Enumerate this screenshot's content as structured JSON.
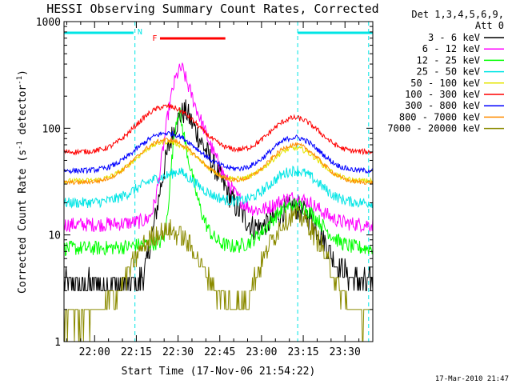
{
  "chart_data": {
    "type": "line",
    "title": "HESSI Observing Summary Count Rates, Corrected",
    "xlabel": "Start Time (17-Nov-06 21:54:22)",
    "ylabel_main": "Corrected Count Rate (s",
    "ylabel_sup1": "-1",
    "ylabel_mid": " detector",
    "ylabel_sup2": "-1",
    "ylabel_end": ")",
    "yscale": "log",
    "ylim": [
      1,
      1000
    ],
    "xlim_minutes": [
      -11,
      100
    ],
    "x_ticks": [
      {
        "t": 0,
        "label": "22:00"
      },
      {
        "t": 15,
        "label": "22:15"
      },
      {
        "t": 30,
        "label": "22:30"
      },
      {
        "t": 45,
        "label": "22:45"
      },
      {
        "t": 60,
        "label": "23:00"
      },
      {
        "t": 75,
        "label": "23:15"
      },
      {
        "t": 90,
        "label": "23:30"
      }
    ],
    "y_ticks": [
      {
        "v": 1,
        "label": "1"
      },
      {
        "v": 10,
        "label": "10"
      },
      {
        "v": 100,
        "label": "100"
      },
      {
        "v": 1000,
        "label": "1000"
      }
    ],
    "legend_header": [
      "Det 1,3,4,5,6,9,",
      "Att 0"
    ],
    "legend_position": "right",
    "footer_date": "17-Mar-2010 21:47",
    "annotations": [
      {
        "label": "N",
        "color": "#00e5e5",
        "t": 16.3
      },
      {
        "label": "F",
        "color": "#ff0000",
        "t": 21.6
      }
    ],
    "night_bars": [
      {
        "start": -11,
        "end": 14,
        "color": "#00e5e5"
      },
      {
        "start": 73,
        "end": 100,
        "color": "#00e5e5"
      }
    ],
    "night_lines": [
      14.5,
      73.0,
      98.5
    ],
    "flare_bar": {
      "start": 23.5,
      "end": 47,
      "color": "#ff0000"
    },
    "series": [
      {
        "name": "3 - 6 keV",
        "color": "#000000",
        "base": 3.5,
        "peak1": 3.0,
        "peak2": 17,
        "flare": 150,
        "flare_t": 33,
        "flare_w": 5,
        "noise": 0.12
      },
      {
        "name": "6 - 12 keV",
        "color": "#ff00ff",
        "base": 12.5,
        "peak1": 14,
        "peak2": 22,
        "flare": 380,
        "flare_t": 31.5,
        "flare_w": 3.5,
        "noise": 0.07
      },
      {
        "name": "12 - 25 keV",
        "color": "#00ff00",
        "base": 7.5,
        "peak1": 8.5,
        "peak2": 19,
        "flare": 150,
        "flare_t": 30.5,
        "flare_w": 1.8,
        "noise": 0.07
      },
      {
        "name": "25 - 50 keV",
        "color": "#00e5e5",
        "base": 20,
        "peak1": 35,
        "peak2": 40,
        "flare": 40,
        "flare_t": 30.5,
        "flare_w": 2.5,
        "noise": 0.05
      },
      {
        "name": "50 - 100 keV",
        "color": "#e5e500",
        "base": 32,
        "peak1": 75,
        "peak2": 65,
        "flare": 0,
        "flare_t": 30,
        "flare_w": 2,
        "noise": 0.025
      },
      {
        "name": "100 - 300 keV",
        "color": "#ff0000",
        "base": 60,
        "peak1": 160,
        "peak2": 125,
        "flare": 0,
        "flare_t": 30,
        "flare_w": 2,
        "noise": 0.025
      },
      {
        "name": "300 - 800 keV",
        "color": "#0000ff",
        "base": 40,
        "peak1": 90,
        "peak2": 82,
        "flare": 0,
        "flare_t": 30,
        "flare_w": 2,
        "noise": 0.025
      },
      {
        "name": "800 - 7000 keV",
        "color": "#ff8c00",
        "base": 31,
        "peak1": 78,
        "peak2": 70,
        "flare": 0,
        "flare_t": 30,
        "flare_w": 2,
        "noise": 0.02
      },
      {
        "name": "7000 - 20000 keV",
        "color": "#8b8b00",
        "base": 1.7,
        "peak1": 11,
        "peak2": 15,
        "flare": 0,
        "flare_t": 30,
        "flare_w": 2,
        "noise": 0.1
      }
    ]
  }
}
